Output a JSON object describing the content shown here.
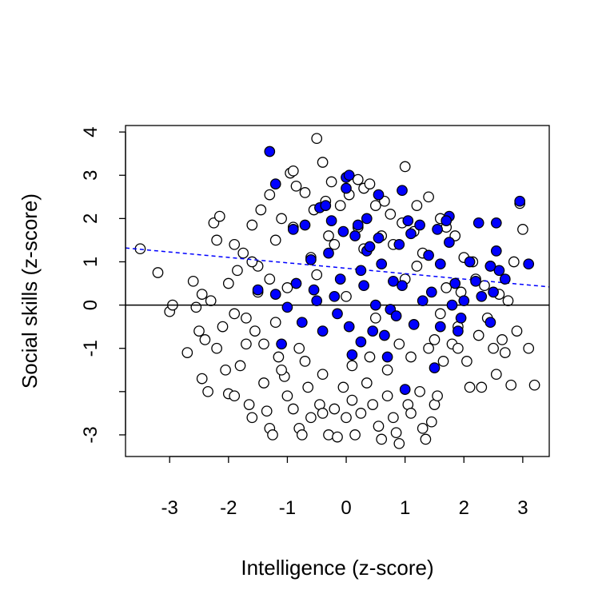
{
  "chart_data": {
    "type": "scatter",
    "xlabel": "Intelligence (z-score)",
    "ylabel": "Social skills (z-score)",
    "xlim": [
      -3.75,
      3.45
    ],
    "ylim": [
      -3.5,
      4.15
    ],
    "x_ticks": [
      -3,
      -2,
      -1,
      0,
      1,
      2,
      3
    ],
    "y_ticks": [
      -3,
      -2,
      -1,
      0,
      1,
      2,
      3,
      4
    ],
    "x_tick_labels": [
      "-3",
      "-2",
      "-1",
      "0",
      "1",
      "2",
      "3"
    ],
    "y_tick_labels": [
      "-3",
      "",
      "-1",
      "0",
      "1",
      "2",
      "3",
      "4"
    ],
    "grid": false,
    "colors": {
      "all_points_edge": "#000000",
      "selected_points_fill": "#0000ff",
      "zero_line": "#000000",
      "trend_line": "#0000ff"
    },
    "horizontal_reference_line": {
      "y": 0,
      "style": "solid"
    },
    "trend_line": {
      "style": "dashed",
      "x": [
        -3.75,
        3.45
      ],
      "y": [
        1.32,
        0.42
      ]
    },
    "series": [
      {
        "style": "open-circle",
        "points": [
          [
            -3.5,
            1.3
          ],
          [
            -3.2,
            0.75
          ],
          [
            -3.0,
            -0.15
          ],
          [
            -2.95,
            0.0
          ],
          [
            -2.7,
            -1.1
          ],
          [
            -2.6,
            0.55
          ],
          [
            -2.55,
            -0.05
          ],
          [
            -2.5,
            -0.6
          ],
          [
            -2.45,
            0.25
          ],
          [
            -2.45,
            -1.7
          ],
          [
            -2.4,
            -0.8
          ],
          [
            -2.35,
            -2.0
          ],
          [
            -2.25,
            1.9
          ],
          [
            -2.2,
            1.5
          ],
          [
            -2.15,
            2.05
          ],
          [
            -2.1,
            -0.5
          ],
          [
            -2.05,
            -1.5
          ],
          [
            -2.0,
            -2.05
          ],
          [
            -1.9,
            -2.1
          ],
          [
            -1.9,
            -0.2
          ],
          [
            -1.85,
            0.8
          ],
          [
            -1.8,
            -1.4
          ],
          [
            -1.75,
            1.2
          ],
          [
            -1.7,
            -0.9
          ],
          [
            -1.65,
            -2.3
          ],
          [
            -1.6,
            -2.6
          ],
          [
            -1.6,
            1.85
          ],
          [
            -1.55,
            -0.6
          ],
          [
            -1.5,
            0.3
          ],
          [
            -1.45,
            2.2
          ],
          [
            -1.4,
            -1.8
          ],
          [
            -1.35,
            -2.45
          ],
          [
            -1.3,
            2.55
          ],
          [
            -1.3,
            -2.85
          ],
          [
            -1.25,
            -3.0
          ],
          [
            -1.2,
            1.5
          ],
          [
            -1.15,
            -1.2
          ],
          [
            -1.1,
            2.0
          ],
          [
            -1.05,
            -1.65
          ],
          [
            -1.0,
            -2.1
          ],
          [
            -0.95,
            3.05
          ],
          [
            -0.9,
            -2.4
          ],
          [
            -0.9,
            3.1
          ],
          [
            -0.85,
            2.75
          ],
          [
            -0.8,
            -2.85
          ],
          [
            -0.75,
            -3.0
          ],
          [
            -0.7,
            2.6
          ],
          [
            -0.65,
            -1.9
          ],
          [
            -0.6,
            -2.6
          ],
          [
            -0.55,
            2.2
          ],
          [
            -0.5,
            3.85
          ],
          [
            -0.45,
            -2.3
          ],
          [
            -0.4,
            3.3
          ],
          [
            -0.4,
            -2.5
          ],
          [
            -0.35,
            2.4
          ],
          [
            -0.3,
            -3.0
          ],
          [
            -0.25,
            2.85
          ],
          [
            -0.2,
            -2.4
          ],
          [
            -0.15,
            -3.05
          ],
          [
            -0.1,
            2.3
          ],
          [
            -0.05,
            -1.9
          ],
          [
            0.0,
            -2.6
          ],
          [
            0.05,
            2.55
          ],
          [
            0.1,
            -2.2
          ],
          [
            0.15,
            -3.0
          ],
          [
            0.2,
            2.9
          ],
          [
            0.25,
            -2.5
          ],
          [
            0.3,
            2.7
          ],
          [
            0.35,
            -1.8
          ],
          [
            0.4,
            2.8
          ],
          [
            0.45,
            -2.3
          ],
          [
            0.5,
            2.3
          ],
          [
            0.55,
            -2.8
          ],
          [
            0.6,
            -3.1
          ],
          [
            0.65,
            2.4
          ],
          [
            0.7,
            -2.1
          ],
          [
            0.75,
            2.1
          ],
          [
            0.8,
            -2.6
          ],
          [
            0.85,
            -2.95
          ],
          [
            0.9,
            -3.2
          ],
          [
            0.95,
            1.9
          ],
          [
            1.0,
            3.2
          ],
          [
            1.05,
            -2.3
          ],
          [
            1.1,
            -2.5
          ],
          [
            1.15,
            1.7
          ],
          [
            1.2,
            2.3
          ],
          [
            1.25,
            -2.0
          ],
          [
            1.3,
            -2.85
          ],
          [
            1.35,
            -3.1
          ],
          [
            1.4,
            2.5
          ],
          [
            1.45,
            -2.7
          ],
          [
            1.5,
            -2.3
          ],
          [
            1.55,
            -2.1
          ],
          [
            1.6,
            2.0
          ],
          [
            1.65,
            -1.3
          ],
          [
            1.7,
            1.8
          ],
          [
            1.8,
            -0.9
          ],
          [
            1.85,
            1.6
          ],
          [
            1.9,
            -1.0
          ],
          [
            1.95,
            0.3
          ],
          [
            2.0,
            1.1
          ],
          [
            2.05,
            -1.3
          ],
          [
            2.1,
            -1.9
          ],
          [
            2.15,
            1.0
          ],
          [
            2.2,
            0.6
          ],
          [
            2.25,
            -0.7
          ],
          [
            2.3,
            -1.9
          ],
          [
            2.35,
            0.45
          ],
          [
            2.4,
            -0.3
          ],
          [
            2.45,
            0.9
          ],
          [
            2.5,
            -1.0
          ],
          [
            2.55,
            -1.6
          ],
          [
            2.6,
            0.25
          ],
          [
            2.65,
            -0.8
          ],
          [
            2.7,
            -1.1
          ],
          [
            2.75,
            0.1
          ],
          [
            2.8,
            -1.85
          ],
          [
            2.85,
            1.0
          ],
          [
            2.9,
            -0.6
          ],
          [
            2.95,
            2.35
          ],
          [
            3.0,
            1.75
          ],
          [
            3.1,
            -1.0
          ],
          [
            3.2,
            -1.85
          ],
          [
            -2.0,
            0.5
          ],
          [
            -1.5,
            0.9
          ],
          [
            -1.0,
            0.4
          ],
          [
            -0.5,
            0.7
          ],
          [
            0.0,
            0.2
          ],
          [
            0.5,
            -0.3
          ],
          [
            1.0,
            0.6
          ],
          [
            1.5,
            -0.8
          ],
          [
            -1.2,
            -0.4
          ],
          [
            -0.8,
            -1.0
          ],
          [
            0.3,
            1.3
          ],
          [
            0.8,
            1.4
          ],
          [
            -0.3,
            1.6
          ],
          [
            1.3,
            1.2
          ],
          [
            -1.7,
            -0.3
          ],
          [
            -2.3,
            0.1
          ],
          [
            -2.2,
            -1.0
          ],
          [
            -1.9,
            1.4
          ],
          [
            -1.6,
            1.0
          ],
          [
            -1.4,
            -0.9
          ],
          [
            -1.3,
            0.6
          ],
          [
            -1.1,
            -1.5
          ],
          [
            -0.9,
            1.8
          ],
          [
            -0.7,
            -1.3
          ],
          [
            -0.6,
            1.1
          ],
          [
            -0.4,
            -1.6
          ],
          [
            -0.2,
            1.4
          ],
          [
            0.1,
            -1.4
          ],
          [
            0.2,
            1.8
          ],
          [
            0.4,
            -1.2
          ],
          [
            0.6,
            1.6
          ],
          [
            0.7,
            -1.5
          ],
          [
            0.9,
            -0.9
          ],
          [
            1.1,
            -1.2
          ],
          [
            1.2,
            0.9
          ],
          [
            1.4,
            -1.0
          ],
          [
            1.6,
            -0.2
          ],
          [
            1.7,
            0.4
          ],
          [
            1.9,
            -0.5
          ]
        ]
      },
      {
        "style": "filled-circle",
        "points": [
          [
            -1.3,
            3.55
          ],
          [
            -1.2,
            2.8
          ],
          [
            -0.45,
            2.25
          ],
          [
            -0.35,
            2.3
          ],
          [
            0.0,
            2.95
          ],
          [
            0.05,
            3.0
          ],
          [
            0.0,
            2.7
          ],
          [
            0.55,
            2.55
          ],
          [
            0.95,
            2.65
          ],
          [
            1.75,
            2.05
          ],
          [
            1.7,
            1.95
          ],
          [
            2.25,
            1.9
          ],
          [
            2.55,
            1.9
          ],
          [
            2.95,
            2.4
          ],
          [
            3.1,
            0.95
          ],
          [
            2.55,
            1.25
          ],
          [
            2.6,
            0.8
          ],
          [
            2.7,
            0.6
          ],
          [
            2.45,
            0.9
          ],
          [
            2.5,
            0.3
          ],
          [
            2.45,
            -0.4
          ],
          [
            2.2,
            0.55
          ],
          [
            2.3,
            0.2
          ],
          [
            2.0,
            0.1
          ],
          [
            1.9,
            -0.6
          ],
          [
            1.85,
            0.5
          ],
          [
            1.75,
            1.45
          ],
          [
            1.6,
            0.95
          ],
          [
            1.5,
            -1.45
          ],
          [
            1.45,
            0.3
          ],
          [
            1.25,
            1.85
          ],
          [
            1.1,
            1.65
          ],
          [
            1.05,
            1.95
          ],
          [
            1.0,
            -1.95
          ],
          [
            0.9,
            1.4
          ],
          [
            0.8,
            0.55
          ],
          [
            0.75,
            -0.1
          ],
          [
            0.7,
            -1.2
          ],
          [
            0.6,
            0.95
          ],
          [
            0.55,
            1.55
          ],
          [
            0.5,
            0.0
          ],
          [
            0.45,
            -0.6
          ],
          [
            0.35,
            1.25
          ],
          [
            0.3,
            0.45
          ],
          [
            0.25,
            0.8
          ],
          [
            0.2,
            1.85
          ],
          [
            0.15,
            1.6
          ],
          [
            0.05,
            -0.5
          ],
          [
            -0.05,
            1.7
          ],
          [
            -0.1,
            0.6
          ],
          [
            -0.2,
            0.2
          ],
          [
            -0.3,
            1.2
          ],
          [
            -0.4,
            -0.6
          ],
          [
            -0.5,
            0.1
          ],
          [
            -0.6,
            1.05
          ],
          [
            -0.75,
            -0.4
          ],
          [
            -0.85,
            0.5
          ],
          [
            -0.9,
            1.75
          ],
          [
            -1.0,
            -0.05
          ],
          [
            -1.1,
            -0.9
          ],
          [
            -1.2,
            0.25
          ],
          [
            -1.5,
            0.35
          ],
          [
            -0.7,
            1.85
          ],
          [
            -0.25,
            1.95
          ],
          [
            0.4,
            1.35
          ],
          [
            1.3,
            0.1
          ],
          [
            1.6,
            -0.5
          ],
          [
            1.95,
            -0.3
          ],
          [
            2.1,
            1.0
          ],
          [
            0.95,
            0.45
          ],
          [
            0.65,
            -0.7
          ],
          [
            -0.15,
            -0.2
          ],
          [
            0.85,
            -0.25
          ],
          [
            1.15,
            -0.45
          ],
          [
            1.4,
            1.15
          ],
          [
            0.1,
            -1.15
          ],
          [
            0.25,
            -0.85
          ],
          [
            -0.55,
            0.35
          ],
          [
            1.8,
            0.0
          ],
          [
            0.35,
            2.0
          ],
          [
            1.55,
            1.75
          ]
        ]
      }
    ]
  }
}
